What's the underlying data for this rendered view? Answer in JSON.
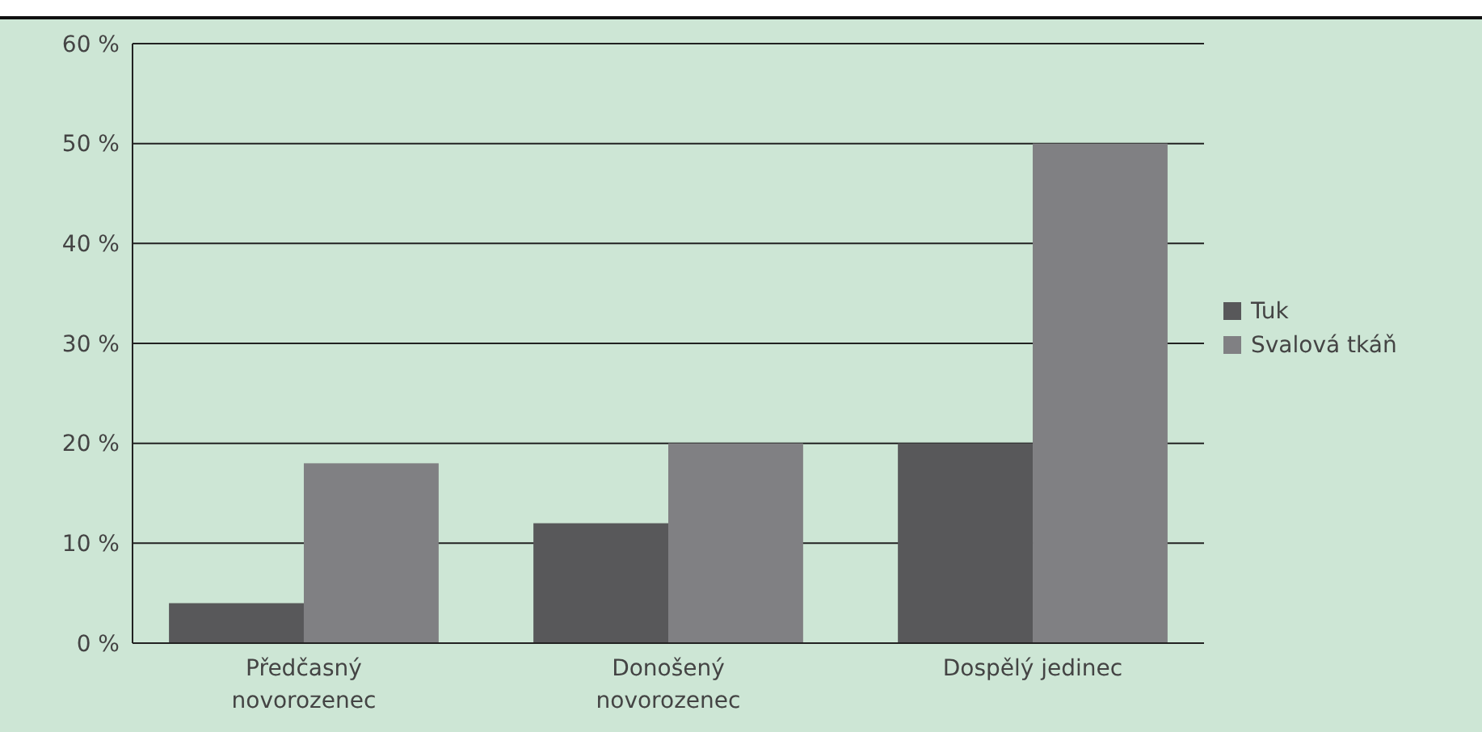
{
  "chart_data": {
    "type": "bar",
    "categories": [
      "Předčasný\nnovorozenec",
      "Donošený\nnovorozenec",
      "Dospělý jedinec"
    ],
    "series": [
      {
        "name": "Tuk",
        "color": "#58585a",
        "values": [
          4,
          12,
          20
        ]
      },
      {
        "name": "Svalová tkáň",
        "color": "#808083",
        "values": [
          18,
          20,
          50
        ]
      }
    ],
    "ylim": [
      0,
      60
    ],
    "yticks": [
      {
        "value": 0,
        "label": "0 %"
      },
      {
        "value": 10,
        "label": "10 %"
      },
      {
        "value": 20,
        "label": "20 %"
      },
      {
        "value": 30,
        "label": "30 %"
      },
      {
        "value": 40,
        "label": "40 %"
      },
      {
        "value": 50,
        "label": "50 %"
      },
      {
        "value": 60,
        "label": "60 %"
      }
    ],
    "grid": "y",
    "legend": "right"
  }
}
